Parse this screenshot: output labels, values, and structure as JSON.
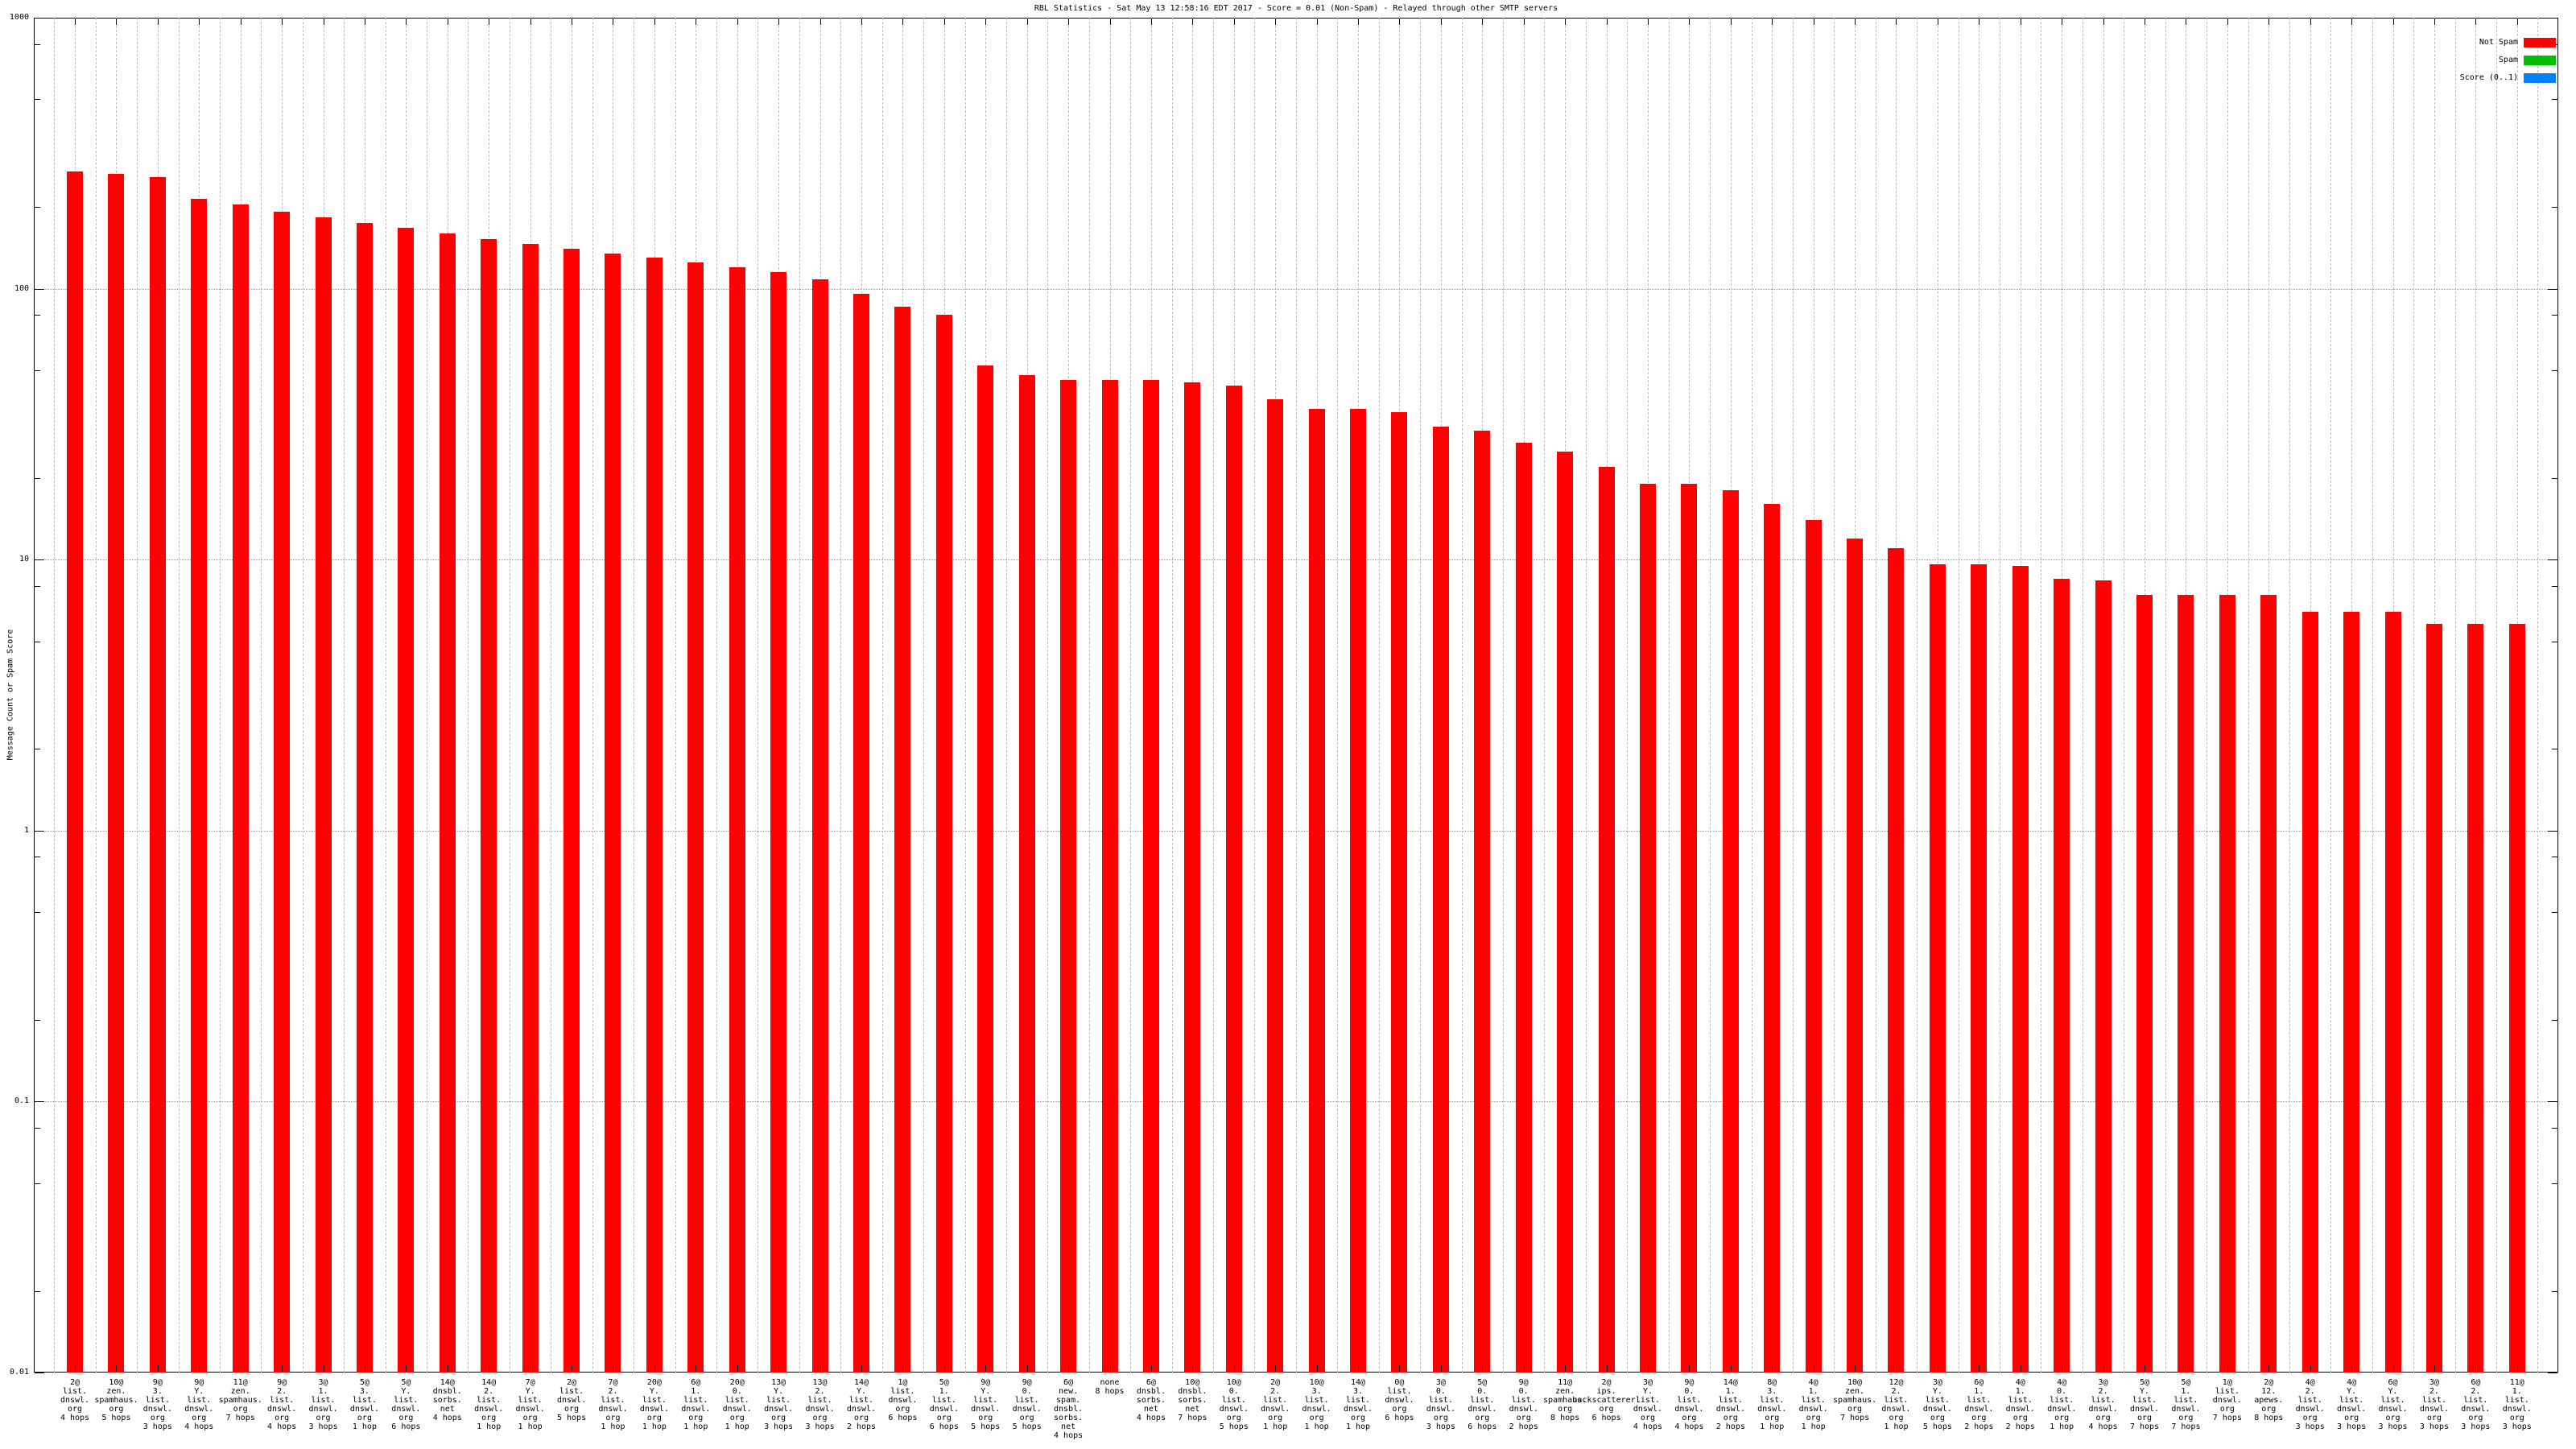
{
  "title": "RBL Statistics - Sat May 13 12:58:16 EDT 2017 - Score = 0.01 (Non-Spam) - Relayed through other SMTP servers",
  "y_axis": {
    "label": "Message Count or Spam Score",
    "tick_labels": [
      "1000",
      "100",
      "10",
      "1",
      "0.1",
      "0.01"
    ]
  },
  "legend": {
    "items": [
      {
        "label": "Not Spam",
        "color": "#ff0000"
      },
      {
        "label": "Spam",
        "color": "#00bf00"
      },
      {
        "label": "Score (0..1)",
        "color": "#0080ff"
      }
    ]
  },
  "chart_data": {
    "type": "bar",
    "title": "RBL Statistics - Sat May 13 12:58:16 EDT 2017 - Score = 0.01 (Non-Spam) - Relayed through other SMTP servers",
    "xlabel": "",
    "ylabel": "Message Count or Spam Score",
    "yscale": "log",
    "ylim": [
      0.01,
      1000
    ],
    "grid": true,
    "legend_position": "top-right-inside",
    "categories": [
      [
        "2@",
        "list.",
        "dnswl.",
        "org",
        "4 hops"
      ],
      [
        "10@",
        "zen.",
        "spamhaus.",
        "org",
        "5 hops"
      ],
      [
        "9@",
        "3.",
        "list.",
        "dnswl.",
        "org",
        "3 hops"
      ],
      [
        "9@",
        "Y.",
        "list.",
        "dnswl.",
        "org",
        "4 hops"
      ],
      [
        "11@",
        "zen.",
        "spamhaus.",
        "org",
        "7 hops"
      ],
      [
        "9@",
        "2.",
        "list.",
        "dnswl.",
        "org",
        "4 hops"
      ],
      [
        "3@",
        "1.",
        "list.",
        "dnswl.",
        "org",
        "3 hops"
      ],
      [
        "5@",
        "3.",
        "list.",
        "dnswl.",
        "org",
        "1 hop"
      ],
      [
        "5@",
        "Y.",
        "list.",
        "dnswl.",
        "org",
        "6 hops"
      ],
      [
        "14@",
        "dnsbl.",
        "sorbs.",
        "net",
        "4 hops"
      ],
      [
        "14@",
        "2.",
        "list.",
        "dnswl.",
        "org",
        "1 hop"
      ],
      [
        "7@",
        "Y.",
        "list.",
        "dnswl.",
        "org",
        "1 hop"
      ],
      [
        "2@",
        "list.",
        "dnswl.",
        "org",
        "5 hops"
      ],
      [
        "7@",
        "2.",
        "list.",
        "dnswl.",
        "org",
        "1 hop"
      ],
      [
        "20@",
        "Y.",
        "list.",
        "dnswl.",
        "org",
        "1 hop"
      ],
      [
        "6@",
        "1.",
        "list.",
        "dnswl.",
        "org",
        "1 hop"
      ],
      [
        "20@",
        "0.",
        "list.",
        "dnswl.",
        "org",
        "1 hop"
      ],
      [
        "13@",
        "Y.",
        "list.",
        "dnswl.",
        "org",
        "3 hops"
      ],
      [
        "13@",
        "2.",
        "list.",
        "dnswl.",
        "org",
        "3 hops"
      ],
      [
        "14@",
        "Y.",
        "list.",
        "dnswl.",
        "org",
        "2 hops"
      ],
      [
        "1@",
        "list.",
        "dnswl.",
        "org",
        "6 hops"
      ],
      [
        "5@",
        "1.",
        "list.",
        "dnswl.",
        "org",
        "6 hops"
      ],
      [
        "9@",
        "Y.",
        "list.",
        "dnswl.",
        "org",
        "5 hops"
      ],
      [
        "9@",
        "0.",
        "list.",
        "dnswl.",
        "org",
        "5 hops"
      ],
      [
        "6@",
        "new.",
        "spam.",
        "dnsbl.",
        "sorbs.",
        "net",
        "4 hops"
      ],
      [
        "none",
        "8 hops"
      ],
      [
        "6@",
        "dnsbl.",
        "sorbs.",
        "net",
        "4 hops"
      ],
      [
        "10@",
        "dnsbl.",
        "sorbs.",
        "net",
        "7 hops"
      ],
      [
        "10@",
        "0.",
        "list.",
        "dnswl.",
        "org",
        "5 hops"
      ],
      [
        "2@",
        "2.",
        "list.",
        "dnswl.",
        "org",
        "1 hop"
      ],
      [
        "10@",
        "3.",
        "list.",
        "dnswl.",
        "org",
        "1 hop"
      ],
      [
        "14@",
        "3.",
        "list.",
        "dnswl.",
        "org",
        "1 hop"
      ],
      [
        "0@",
        "list.",
        "dnswl.",
        "org",
        "6 hops"
      ],
      [
        "3@",
        "0.",
        "list.",
        "dnswl.",
        "org",
        "3 hops"
      ],
      [
        "5@",
        "0.",
        "list.",
        "dnswl.",
        "org",
        "6 hops"
      ],
      [
        "9@",
        "0.",
        "list.",
        "dnswl.",
        "org",
        "2 hops"
      ],
      [
        "11@",
        "zen.",
        "spamhaus.",
        "org",
        "8 hops"
      ],
      [
        "2@",
        "ips.",
        "backscatterer.",
        "org",
        "6 hops"
      ],
      [
        "3@",
        "Y.",
        "list.",
        "dnswl.",
        "org",
        "4 hops"
      ],
      [
        "9@",
        "0.",
        "list.",
        "dnswl.",
        "org",
        "4 hops"
      ],
      [
        "14@",
        "1.",
        "list.",
        "dnswl.",
        "org",
        "2 hops"
      ],
      [
        "8@",
        "3.",
        "list.",
        "dnswl.",
        "org",
        "1 hop"
      ],
      [
        "4@",
        "1.",
        "list.",
        "dnswl.",
        "org",
        "1 hop"
      ],
      [
        "10@",
        "zen.",
        "spamhaus.",
        "org",
        "7 hops"
      ],
      [
        "12@",
        "2.",
        "list.",
        "dnswl.",
        "org",
        "1 hop"
      ],
      [
        "3@",
        "Y.",
        "list.",
        "dnswl.",
        "org",
        "5 hops"
      ],
      [
        "6@",
        "1.",
        "list.",
        "dnswl.",
        "org",
        "2 hops"
      ],
      [
        "4@",
        "1.",
        "list.",
        "dnswl.",
        "org",
        "2 hops"
      ],
      [
        "4@",
        "0.",
        "list.",
        "dnswl.",
        "org",
        "1 hop"
      ],
      [
        "3@",
        "2.",
        "list.",
        "dnswl.",
        "org",
        "4 hops"
      ],
      [
        "5@",
        "Y.",
        "list.",
        "dnswl.",
        "org",
        "7 hops"
      ],
      [
        "5@",
        "1.",
        "list.",
        "dnswl.",
        "org",
        "7 hops"
      ],
      [
        "1@",
        "list.",
        "dnswl.",
        "org",
        "7 hops"
      ],
      [
        "2@",
        "12.",
        "apews.",
        "org",
        "8 hops"
      ],
      [
        "4@",
        "2.",
        "list.",
        "dnswl.",
        "org",
        "3 hops"
      ],
      [
        "4@",
        "Y.",
        "list.",
        "dnswl.",
        "org",
        "3 hops"
      ],
      [
        "6@",
        "Y.",
        "list.",
        "dnswl.",
        "org",
        "3 hops"
      ],
      [
        "3@",
        "2.",
        "list.",
        "dnswl.",
        "org",
        "3 hops"
      ],
      [
        "6@",
        "2.",
        "list.",
        "dnswl.",
        "org",
        "3 hops"
      ],
      [
        "11@",
        "1.",
        "list.",
        "dnswl.",
        "org",
        "3 hops"
      ]
    ],
    "series": [
      {
        "name": "Not Spam",
        "color": "#ff0000",
        "values": [
          270,
          265,
          258,
          215,
          205,
          192,
          183,
          175,
          168,
          160,
          152,
          146,
          140,
          135,
          130,
          125,
          120,
          115,
          108,
          96,
          86,
          80,
          52,
          48,
          46,
          46,
          46,
          45,
          44,
          39,
          36,
          36,
          35,
          31,
          30,
          27,
          25,
          22,
          19,
          19,
          18,
          16,
          14,
          12,
          11,
          9.6,
          9.6,
          9.5,
          8.5,
          8.4,
          7.4,
          7.4,
          7.4,
          7.4,
          6.4,
          6.4,
          6.4,
          5.8,
          5.8,
          5.8
        ]
      },
      {
        "name": "Spam",
        "color": "#00bf00",
        "values": []
      },
      {
        "name": "Score (0..1)",
        "color": "#0080ff",
        "values": []
      }
    ]
  }
}
